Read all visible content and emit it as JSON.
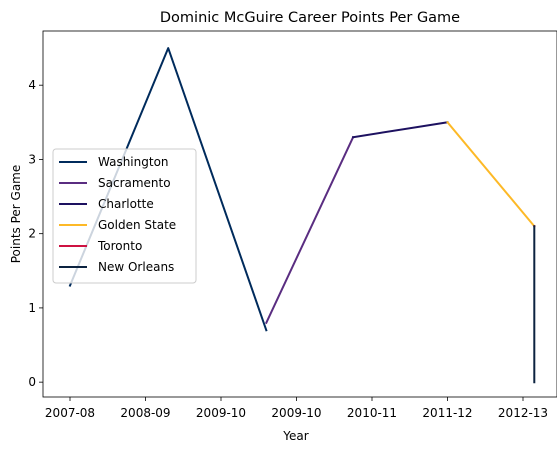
{
  "chart_data": {
    "type": "line",
    "title": "Dominic McGuire Career Points Per Game",
    "xlabel": "Year",
    "ylabel": "Points Per Game",
    "categories": [
      "2007-08",
      "2008-09",
      "2009-10",
      "2009-10",
      "2010-11",
      "2011-12",
      "2012-13"
    ],
    "ylim": [
      -0.2,
      4.73
    ],
    "yticks": [
      0,
      1,
      2,
      3,
      4
    ],
    "grid": false,
    "legend_position": "center-left",
    "series": [
      {
        "name": "Washington",
        "color": "#002B5C",
        "points": [
          [
            0,
            1.3
          ],
          [
            1.3,
            4.5
          ],
          [
            2.6,
            0.7
          ]
        ]
      },
      {
        "name": "Sacramento",
        "color": "#5A2D81",
        "points": [
          [
            2.6,
            0.8
          ],
          [
            3.75,
            3.3
          ]
        ]
      },
      {
        "name": "Charlotte",
        "color": "#1D1160",
        "points": [
          [
            3.75,
            3.3
          ],
          [
            5.0,
            3.5
          ]
        ]
      },
      {
        "name": "Golden State",
        "color": "#FDB927",
        "points": [
          [
            5.0,
            3.5
          ],
          [
            6.15,
            2.1
          ]
        ]
      },
      {
        "name": "Toronto",
        "color": "#CE1141",
        "points": [
          [
            6.15,
            2.1
          ],
          [
            6.15,
            2.1
          ]
        ]
      },
      {
        "name": "New Orleans",
        "color": "#0C2340",
        "points": [
          [
            6.15,
            2.1
          ],
          [
            6.15,
            0.0
          ]
        ]
      }
    ]
  }
}
